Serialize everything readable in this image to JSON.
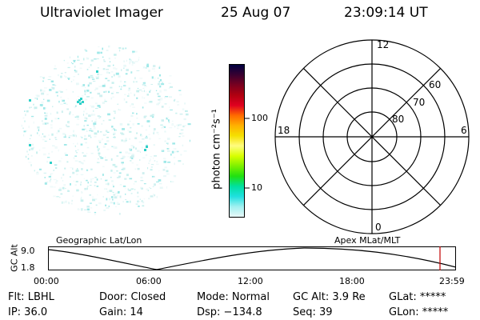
{
  "header": {
    "instrument": "Ultraviolet Imager",
    "date": "25 Aug 07",
    "time": "23:09:14 UT"
  },
  "colorbar": {
    "label": "photon cm⁻²s⁻¹",
    "ticks": [
      "100",
      "10"
    ],
    "colors": [
      "#000040",
      "#3a0030",
      "#7a0020",
      "#b00010",
      "#e00020",
      "#ff6a00",
      "#ffb000",
      "#f5e000",
      "#fffc80",
      "#d8ff00",
      "#7cf000",
      "#20e010",
      "#00e0a0",
      "#20e0e0",
      "#a0f0f0",
      "#e8f8f8"
    ]
  },
  "polar": {
    "mlt_labels": {
      "top": "12",
      "right": "6",
      "bottom": "0",
      "left": "18"
    },
    "lat_labels": [
      "60",
      "70",
      "80"
    ]
  },
  "orbit": {
    "axis_title": "GC Alt",
    "y_max": "9.0",
    "y_min": "1.8",
    "left_label": "Geographic Lat/Lon",
    "right_label": "Apex MLat/MLT",
    "x_ticks": [
      "00:00",
      "06:00",
      "12:00",
      "18:00",
      "23:59"
    ]
  },
  "info": {
    "flt": "Flt: LBHL",
    "ip": "IP: 36.0",
    "door": "Door: Closed",
    "gain": "Gain: 14",
    "mode": "Mode: Normal",
    "dsp": "Dsp: −134.8",
    "gcalt": "GC Alt: 3.9 Re",
    "seq": "Seq: 39",
    "glat": "GLat: *****",
    "glon": "GLon: *****"
  }
}
